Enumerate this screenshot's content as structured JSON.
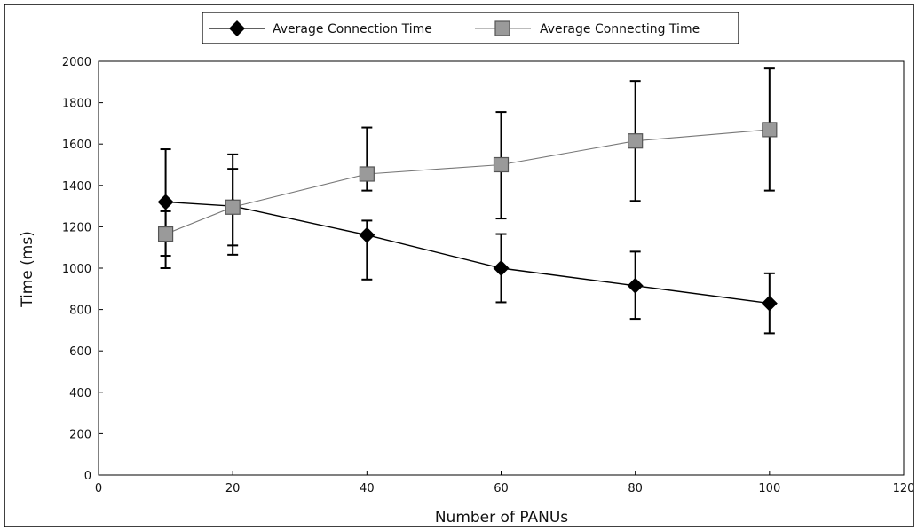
{
  "chart_data": {
    "type": "line",
    "xlabel": "Number of PANUs",
    "ylabel": "Time (ms)",
    "xlim": [
      0,
      120
    ],
    "ylim": [
      0,
      2000
    ],
    "x_ticks": [
      0,
      20,
      40,
      60,
      80,
      100,
      120
    ],
    "y_ticks": [
      0,
      200,
      400,
      600,
      800,
      1000,
      1200,
      1400,
      1600,
      1800,
      2000
    ],
    "grid": false,
    "legend_position": "top-center",
    "x": [
      10,
      20,
      40,
      60,
      80,
      100
    ],
    "series": [
      {
        "name": "Average Connection Time",
        "marker": "diamond",
        "color": "#000000",
        "values": [
          1320,
          1300,
          1160,
          1000,
          915,
          830
        ],
        "error_low": [
          1000,
          1110,
          945,
          835,
          755,
          685
        ],
        "error_high": [
          1575,
          1480,
          1230,
          1165,
          1080,
          975
        ]
      },
      {
        "name": "Average Connecting Time",
        "marker": "square",
        "color": "#9a9a9a",
        "values": [
          1165,
          1295,
          1455,
          1500,
          1615,
          1670
        ],
        "error_low": [
          1060,
          1065,
          1375,
          1240,
          1325,
          1375
        ],
        "error_high": [
          1275,
          1550,
          1680,
          1755,
          1905,
          1965
        ]
      }
    ]
  }
}
